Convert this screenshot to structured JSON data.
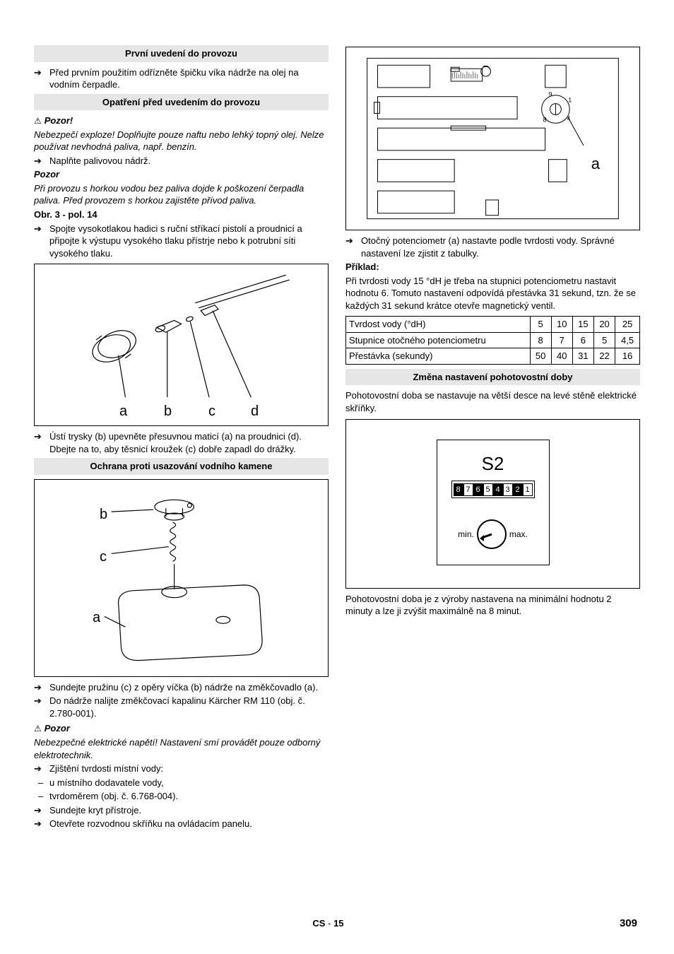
{
  "left": {
    "head1": "První uvedení do provozu",
    "b1": "Před prvním použitím odřízněte špičku víka nádrže na olej na vodním čerpadle.",
    "head2": "Opatření před uvedením do provozu",
    "warn1_label": "Pozor!",
    "warn1_text": "Nebezpečí exploze! Doplňujte pouze naftu nebo lehký topný olej. Nelze používat nevhodná paliva, např. benzín.",
    "b2": "Naplňte palivovou nádrž.",
    "warn2_label": "Pozor",
    "warn2_text": "Při provozu s horkou vodou bez paliva dojde k poškození čerpadla paliva. Před provozem s horkou zajistěte přívod paliva.",
    "obr": "Obr. 3 - pol. 14",
    "b3": "Spojte vysokotlakou hadici s ruční stříkací pistolí a proudnicí a připojte k výstupu vysokého tlaku přístrje nebo k potrubní síti vysokého tlaku.",
    "fig1_labels": {
      "a": "a",
      "b": "b",
      "c": "c",
      "d": "d"
    },
    "b4": "Ústí trysky (b) upevněte přesuvnou maticí (a) na proudnici (d). Dbejte na to, aby těsnicí kroužek (c) dobře zapadl do drážky.",
    "head3": "Ochrana proti usazování vodního kamene",
    "fig2_labels": {
      "a": "a",
      "b": "b",
      "c": "c"
    },
    "b5": "Sundejte pružinu (c) z opěry víčka (b) nádrže na změkčovadlo (a).",
    "b6": "Do nádrže nalijte změkčovací kapalinu Kärcher RM 110 (obj. č. 2.780-001).",
    "warn3_label": "Pozor",
    "warn3_text": "Nebezpečné elektrické napětí! Nastavení smí provádět pouze odborný elektrotechnik.",
    "b7": "Zjištění tvrdosti místní vody:",
    "d1": "u místního dodavatele vody,",
    "d2": "tvrdoměrem (obj. č. 6.768-004).",
    "b8": "Sundejte kryt přístroje.",
    "b9": "Otevřete rozvodnou skříňku na ovládacím panelu."
  },
  "right": {
    "fig3_label_a": "a",
    "pot_numbers": [
      "9",
      "8",
      "1",
      "4"
    ],
    "b1": "Otočný potenciometr (a) nastavte podle tvrdosti vody. Správné nastavení lze zjistit z tabulky.",
    "priklad_label": "Příklad:",
    "priklad_text": "Při tvrdosti vody 15 °dH je třeba na stupnici potenciometru nastavit hodnotu 6. Tomuto nastavení odpovídá přestávka 31 sekund, tzn. že se každých 31 sekund krátce otevře magnetický ventil.",
    "table": {
      "rows": [
        [
          "Tvrdost vody (°dH)",
          "5",
          "10",
          "15",
          "20",
          "25"
        ],
        [
          "Stupnice otočného potenciometru",
          "8",
          "7",
          "6",
          "5",
          "4,5"
        ],
        [
          "Přestávka (sekundy)",
          "50",
          "40",
          "31",
          "22",
          "16"
        ]
      ],
      "col_count": 6
    },
    "head1": "Změna nastavení pohotovostní doby",
    "p1": "Pohotovostní doba se nastavuje na větší desce na levé stěně elektrické skříňky.",
    "fig4": {
      "title": "S2",
      "dip": [
        "8",
        "7",
        "6",
        "5",
        "4",
        "3",
        "2",
        "1"
      ],
      "dip_on": [
        true,
        false,
        true,
        false,
        true,
        false,
        true,
        false
      ],
      "min": "min.",
      "max": "max."
    },
    "p2": "Pohotovostní doba je z výroby nastavena na minimální hodnotu 2 minuty a lze ji zvýšit maximálně na 8 minut."
  },
  "footer": {
    "lang": "CS",
    "sep": "-",
    "page_local": "15",
    "page_global": "309"
  },
  "colors": {
    "section_bg": "#e6e6e6",
    "border": "#000000",
    "text": "#000000"
  }
}
